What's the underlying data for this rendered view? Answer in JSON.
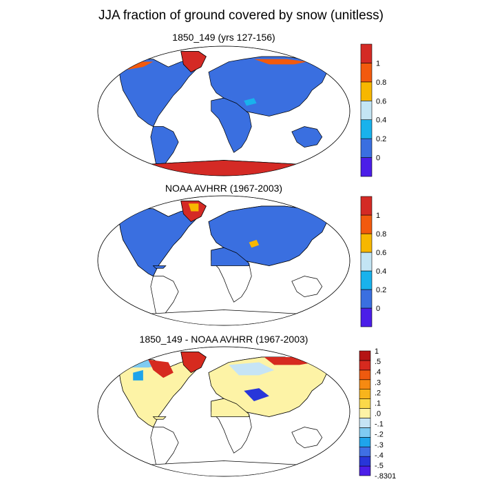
{
  "title": "JJA fraction of ground covered by snow (unitless)",
  "colors": {
    "land_low": "#3a6fe0",
    "land_edge": "#1b3fa8",
    "ice_high": "#d42a25",
    "snow_orange": "#f25a0e",
    "neutral_diff": "#fdf3a6"
  },
  "chart_data": [
    {
      "type": "heatmap",
      "title": "1850_149 (yrs 127-156)",
      "projection": "robinson",
      "colorbar": {
        "orientation": "vertical",
        "placement": "right",
        "labels": [
          "1",
          "0.8",
          "0.6",
          "0.4",
          "0.2",
          "0"
        ],
        "colors": [
          "#4b1ee8",
          "#3a6fe0",
          "#19b2ec",
          "#c3e5f4",
          "#f7b700",
          "#f25a0e",
          "#d42a25"
        ]
      },
      "coverage": "global land",
      "features": {
        "antarctica": "high",
        "greenland": "high",
        "land": "low"
      }
    },
    {
      "type": "heatmap",
      "title": "NOAA AVHRR (1967-2003)",
      "projection": "robinson",
      "colorbar": {
        "orientation": "vertical",
        "placement": "right",
        "labels": [
          "1",
          "0.8",
          "0.6",
          "0.4",
          "0.2",
          "0"
        ],
        "colors": [
          "#4b1ee8",
          "#3a6fe0",
          "#19b2ec",
          "#c3e5f4",
          "#f7b700",
          "#f25a0e",
          "#d42a25"
        ]
      },
      "coverage": "northern hemisphere land",
      "features": {
        "greenland": "high",
        "land": "low"
      }
    },
    {
      "type": "heatmap",
      "title": "1850_149 - NOAA AVHRR (1967-2003)",
      "projection": "robinson",
      "colorbar": {
        "orientation": "vertical",
        "placement": "right",
        "labels": [
          "1",
          ".5",
          ".4",
          ".3",
          ".2",
          ".1",
          ".0",
          "-.1",
          "-.2",
          "-.3",
          "-.4",
          "-.5",
          "-.8301"
        ],
        "colors": [
          "#4b1ee8",
          "#2836d9",
          "#3f6fe4",
          "#1fa4eb",
          "#7fcbf2",
          "#c6e4f5",
          "#fdf3a6",
          "#fbd94a",
          "#f8b41c",
          "#f68a12",
          "#ee5a0f",
          "#d62a1f",
          "#b51414"
        ]
      },
      "coverage": "northern hemisphere land",
      "features": {
        "greenland": "high",
        "land": "near zero"
      }
    }
  ]
}
